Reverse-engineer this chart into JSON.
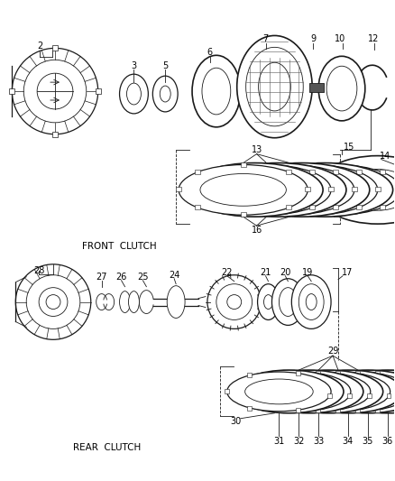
{
  "bg_color": "#ffffff",
  "line_color": "#1a1a1a",
  "text_color": "#000000",
  "front_clutch_label": "FRONT  CLUTCH",
  "rear_clutch_label": "REAR  CLUTCH",
  "label_fontsize": 7.0,
  "number_fontsize": 7.0
}
